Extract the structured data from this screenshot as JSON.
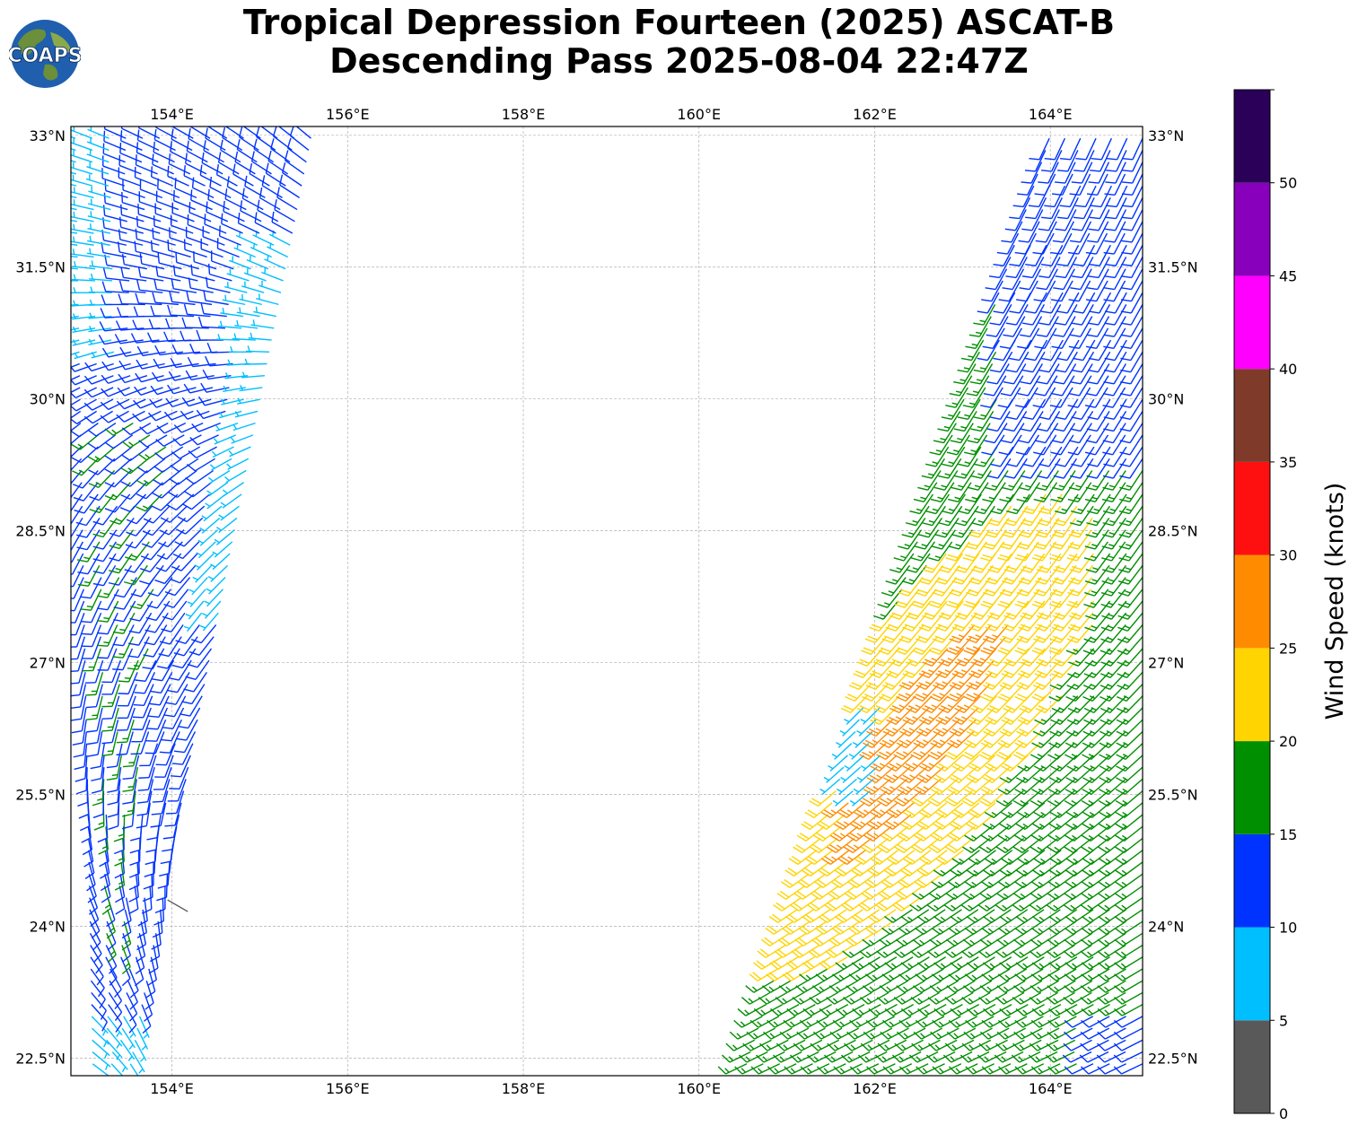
{
  "title": {
    "line1": "Tropical Depression Fourteen (2025) ASCAT-B",
    "line2": "Descending Pass 2025-08-04 22:47Z"
  },
  "logo": {
    "text": "COAPS",
    "colors": {
      "ocean": "#1f5fae",
      "land": "#6b8f3a",
      "text": "#ffffff"
    }
  },
  "map": {
    "lon_range": [
      152.85,
      165.05
    ],
    "lat_range": [
      22.3,
      33.1
    ],
    "gridlines": true,
    "lon_ticks": [
      {
        "value": 154,
        "label": "154°E"
      },
      {
        "value": 156,
        "label": "156°E"
      },
      {
        "value": 158,
        "label": "158°E"
      },
      {
        "value": 160,
        "label": "160°E"
      },
      {
        "value": 162,
        "label": "162°E"
      },
      {
        "value": 164,
        "label": "164°E"
      }
    ],
    "lat_ticks": [
      {
        "value": 33,
        "label": "33°N"
      },
      {
        "value": 31.5,
        "label": "31.5°N"
      },
      {
        "value": 30,
        "label": "30°N"
      },
      {
        "value": 28.5,
        "label": "28.5°N"
      },
      {
        "value": 27,
        "label": "27°N"
      },
      {
        "value": 25.5,
        "label": "25.5°N"
      },
      {
        "value": 24,
        "label": "24°N"
      },
      {
        "value": 22.5,
        "label": "22.5°N"
      }
    ]
  },
  "colorbar": {
    "label": "Wind Speed (knots)",
    "bins": [
      {
        "min": 0,
        "max": 5,
        "color": "#595959"
      },
      {
        "min": 5,
        "max": 10,
        "color": "#00bfff"
      },
      {
        "min": 10,
        "max": 15,
        "color": "#0033ff"
      },
      {
        "min": 15,
        "max": 20,
        "color": "#008f00"
      },
      {
        "min": 20,
        "max": 25,
        "color": "#ffd400"
      },
      {
        "min": 25,
        "max": 30,
        "color": "#ff8c00"
      },
      {
        "min": 30,
        "max": 35,
        "color": "#ff1010"
      },
      {
        "min": 35,
        "max": 40,
        "color": "#7f3a2a"
      },
      {
        "min": 40,
        "max": 45,
        "color": "#ff00ff"
      },
      {
        "min": 45,
        "max": 50,
        "color": "#8800bb"
      },
      {
        "min": 50,
        "max": 55,
        "color": "#2a0059"
      }
    ],
    "tick_labels": [
      "0",
      "5",
      "10",
      "15",
      "20",
      "25",
      "30",
      "35",
      "40",
      "45",
      "50"
    ]
  },
  "chart_data": {
    "type": "wind-barb-map",
    "swaths": [
      {
        "name": "west",
        "lat_range": [
          22.3,
          33.05
        ],
        "west_edge": {
          "lat_start": 22.3,
          "lon_start": 153.1,
          "lat_end": 33.05,
          "lon_end": 152.9
        },
        "east_edge": {
          "lat_start": 22.3,
          "lon_start": 153.5,
          "lat_end": 33.05,
          "lon_end": 155.6
        },
        "speed_zones": [
          {
            "lat": [
              22.3,
              23.0
            ],
            "speed_kt": 8
          },
          {
            "lat": [
              23.0,
              24.6
            ],
            "speed_kt": 14
          },
          {
            "lat": [
              24.6,
              26.2
            ],
            "speed_kt": 13
          },
          {
            "lat": [
              26.2,
              29.5
            ],
            "speed_kt": 14
          },
          {
            "lat": [
              29.5,
              31.5
            ],
            "speed_kt": 11
          },
          {
            "lat": [
              31.5,
              33.05
            ],
            "speed_kt": 12
          }
        ],
        "direction_from_deg": [
          {
            "lat": 22.3,
            "deg": 135
          },
          {
            "lat": 26.0,
            "deg": 195
          },
          {
            "lat": 29.0,
            "deg": 225
          },
          {
            "lat": 31.5,
            "deg": 285
          },
          {
            "lat": 33.0,
            "deg": 300
          }
        ]
      },
      {
        "name": "east",
        "lat_range": [
          22.3,
          33.0
        ],
        "west_edge": {
          "lat_start": 22.3,
          "lon_start": 160.5,
          "lat_end": 33.0,
          "lon_end": 164.0
        },
        "east_edge": {
          "lat_start": 22.3,
          "lon_start": 165.05,
          "lat_end": 33.0,
          "lon_end": 165.05
        },
        "speed_zones": [
          {
            "region": "core",
            "center": [
              162.6,
              26.2
            ],
            "speed_kt": 26
          },
          {
            "region": "inner",
            "speed_kt": 22
          },
          {
            "region": "outer",
            "speed_kt": 17
          },
          {
            "region": "north",
            "speed_kt": 13
          }
        ],
        "direction_from_deg": [
          {
            "lat": 22.3,
            "deg": 245
          },
          {
            "lat": 25.5,
            "deg": 230
          },
          {
            "lat": 28.5,
            "deg": 215
          },
          {
            "lat": 33.0,
            "deg": 205
          }
        ]
      }
    ],
    "isolated_points": [
      {
        "lon": 153.95,
        "lat": 24.3,
        "speed_kt": 2
      }
    ]
  }
}
